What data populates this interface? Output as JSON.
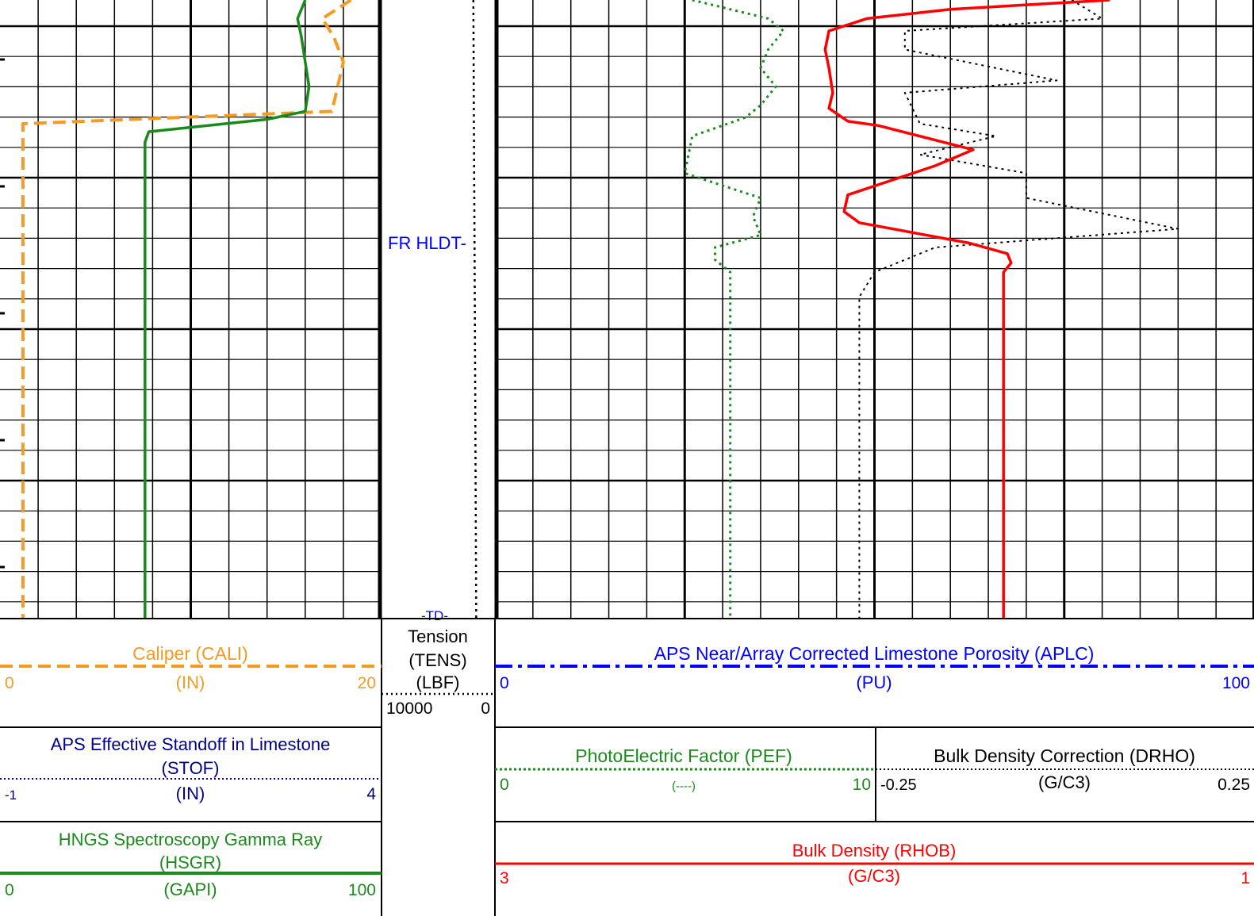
{
  "chart_data": {
    "type": "line",
    "annotations": {
      "fr_hldt": "FR HLDT-",
      "td": "-TD-"
    },
    "tracks": {
      "track1": {
        "curves": [
          {
            "id": "cali",
            "title": "Caliper (CALI)",
            "unit": "(IN)",
            "min": "0",
            "max": "20",
            "min_value": 0,
            "max_value": 20,
            "color": "#f59a23",
            "style": "dashed",
            "values": [
              [
                18.4,
                0
              ],
              [
                16.9,
                3
              ],
              [
                17.5,
                6
              ],
              [
                18.0,
                10
              ],
              [
                17.7,
                14
              ],
              [
                17.4,
                18
              ],
              [
                1.2,
                20
              ],
              [
                1.2,
                25
              ],
              [
                1.2,
                30
              ],
              [
                1.2,
                35
              ],
              [
                1.2,
                40
              ],
              [
                1.2,
                45
              ],
              [
                1.2,
                50
              ],
              [
                1.2,
                55
              ],
              [
                1.2,
                60
              ],
              [
                1.2,
                65
              ],
              [
                1.2,
                70
              ],
              [
                1.2,
                75
              ],
              [
                1.2,
                80
              ],
              [
                1.2,
                85
              ],
              [
                1.2,
                90
              ],
              [
                1.2,
                95
              ],
              [
                1.2,
                100
              ]
            ]
          },
          {
            "id": "hsgr",
            "title": "HNGS Spectroscopy Gamma Ray",
            "title2": "(HSGR)",
            "unit": "(GAPI)",
            "min": "0",
            "max": "100",
            "min_value": 0,
            "max_value": 100,
            "color": "#1a8a1a",
            "style": "solid",
            "values": [
              [
                80,
                0
              ],
              [
                78,
                3
              ],
              [
                79,
                6
              ],
              [
                80,
                10
              ],
              [
                81,
                14
              ],
              [
                80,
                18
              ],
              [
                70,
                19.3
              ],
              [
                39,
                21.3
              ],
              [
                38,
                23
              ],
              [
                38,
                30
              ],
              [
                38,
                40
              ],
              [
                38,
                46
              ],
              [
                38,
                50
              ],
              [
                38,
                60
              ],
              [
                38,
                70
              ],
              [
                38,
                80
              ],
              [
                38,
                90
              ],
              [
                38,
                100
              ]
            ]
          }
        ],
        "stof": {
          "title": "APS Effective Standoff in Limestone",
          "title2": "(STOF)",
          "unit": "(IN)",
          "min": "-1",
          "max": "4",
          "color": "#00008b",
          "style": "dotted"
        }
      },
      "track2": {
        "curves": [
          {
            "id": "tens",
            "title": "Tension",
            "title2": "(TENS)",
            "unit": "(LBF)",
            "min": "10000",
            "max": "0",
            "min_value": 10000,
            "max_value": 0,
            "color": "#000000",
            "style": "dotted",
            "values": [
              [
                1900,
                0
              ],
              [
                1850,
                20
              ],
              [
                1800,
                40
              ],
              [
                1750,
                60
              ],
              [
                1700,
                80
              ],
              [
                1650,
                100
              ]
            ]
          }
        ]
      },
      "track3": {
        "curves": [
          {
            "id": "aplc",
            "title": "APS Near/Array Corrected Limestone Porosity (APLC)",
            "unit": "(PU)",
            "min": "0",
            "max": "100",
            "min_value": 0,
            "max_value": 100,
            "color": "#0000ff",
            "style": "dashdot",
            "values": []
          },
          {
            "id": "pef",
            "title": "PhotoElectric Factor (PEF)",
            "unit": "(----)",
            "min": "0",
            "max": "10",
            "min_value": 0,
            "max_value": 10,
            "color": "#1a8a1a",
            "style": "dotted",
            "values": [
              [
                2.6,
                0
              ],
              [
                3.6,
                3
              ],
              [
                3.8,
                5
              ],
              [
                3.6,
                8
              ],
              [
                3.5,
                11
              ],
              [
                3.7,
                14
              ],
              [
                3.5,
                17
              ],
              [
                3.3,
                19
              ],
              [
                2.6,
                22
              ],
              [
                2.5,
                28
              ],
              [
                3.5,
                32
              ],
              [
                3.4,
                35
              ],
              [
                3.5,
                38
              ],
              [
                2.9,
                40
              ],
              [
                2.9,
                42
              ],
              [
                3.1,
                44
              ],
              [
                3.1,
                46
              ],
              [
                3.1,
                50
              ],
              [
                3.1,
                60
              ],
              [
                3.1,
                70
              ],
              [
                3.1,
                80
              ],
              [
                3.1,
                90
              ],
              [
                3.1,
                100
              ]
            ]
          },
          {
            "id": "drho",
            "title": "Bulk Density Correction (DRHO)",
            "unit": "(G/C3)",
            "min": "-0.25",
            "max": "0.25",
            "min_value": -0.25,
            "max_value": 0.25,
            "color": "#000000",
            "style": "dotted",
            "values": [
              [
                0.13,
                0
              ],
              [
                0.15,
                3
              ],
              [
                0.02,
                5
              ],
              [
                0.02,
                8
              ],
              [
                0.12,
                13
              ],
              [
                0.02,
                15
              ],
              [
                0.03,
                20
              ],
              [
                0.08,
                22
              ],
              [
                0.03,
                25
              ],
              [
                0.1,
                28
              ],
              [
                0.1,
                32
              ],
              [
                0.2,
                37
              ],
              [
                0.04,
                40
              ],
              [
                0.0,
                44
              ],
              [
                -0.01,
                48
              ],
              [
                -0.01,
                60
              ],
              [
                -0.01,
                70
              ],
              [
                -0.01,
                80
              ],
              [
                -0.01,
                90
              ],
              [
                -0.01,
                100
              ]
            ]
          },
          {
            "id": "rhob",
            "title": "Bulk Density (RHOB)",
            "unit": "(G/C3)",
            "min": "3",
            "max": "1",
            "min_value": 3,
            "max_value": 1,
            "color": "#ff0000",
            "style": "solid",
            "values": [
              [
                1.38,
                0
              ],
              [
                1.8,
                1.5
              ],
              [
                2.02,
                3
              ],
              [
                2.12,
                5
              ],
              [
                2.13,
                8
              ],
              [
                2.12,
                11
              ],
              [
                2.11,
                15
              ],
              [
                2.12,
                17.5
              ],
              [
                2.07,
                19.6
              ],
              [
                1.99,
                20.3
              ],
              [
                1.74,
                24.2
              ],
              [
                1.84,
                26.8
              ],
              [
                2.07,
                31.5
              ],
              [
                2.08,
                34.2
              ],
              [
                2.04,
                36
              ],
              [
                1.75,
                39.3
              ],
              [
                1.65,
                41
              ],
              [
                1.64,
                42.5
              ],
              [
                1.66,
                44
              ],
              [
                1.66,
                48
              ],
              [
                1.66,
                60
              ],
              [
                1.66,
                70
              ],
              [
                1.66,
                80
              ],
              [
                1.66,
                90
              ],
              [
                1.66,
                100
              ]
            ]
          }
        ]
      }
    }
  }
}
